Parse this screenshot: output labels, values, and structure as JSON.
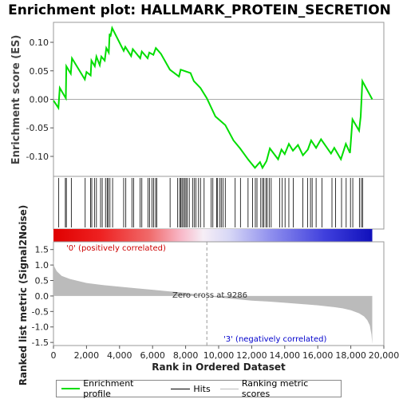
{
  "title": "Enrichment plot: HALLMARK_PROTEIN_SECRETION",
  "es_ylabel": "Enrichment score (ES)",
  "rank_ylabel": "Ranked list metric (Signal2Noise)",
  "xlabel": "Rank in Ordered Dataset",
  "pos_label": "'0' (positively correlated)",
  "neg_label": "'3' (negatively correlated)",
  "zero_cross_label": "Zero cross at 9286",
  "legend": {
    "enrichment": "Enrichment profile",
    "hits": "Hits",
    "ranking": "Ranking metric scores"
  },
  "colors": {
    "enrichment_line": "#00dd00",
    "hits": "#000000",
    "pos_text": "#cc0000",
    "neg_text": "#0000cc",
    "metric_fill": "#bbbbbb"
  },
  "chart_data": [
    {
      "type": "line",
      "name": "enrichment-profile",
      "ylabel": "Enrichment score (ES)",
      "xlim": [
        0,
        20000
      ],
      "ylim": [
        -0.135,
        0.135
      ],
      "yticks": [
        -0.1,
        -0.05,
        0.0,
        0.05,
        0.1
      ],
      "ytick_labels": [
        "-0.10",
        "-0.05",
        "0.00",
        "0.05",
        "0.10"
      ],
      "points": [
        [
          0,
          -0.002
        ],
        [
          300,
          -0.015
        ],
        [
          380,
          0.02
        ],
        [
          750,
          0.002
        ],
        [
          780,
          0.058
        ],
        [
          1050,
          0.045
        ],
        [
          1120,
          0.072
        ],
        [
          1900,
          0.035
        ],
        [
          2000,
          0.048
        ],
        [
          2250,
          0.042
        ],
        [
          2300,
          0.068
        ],
        [
          2500,
          0.058
        ],
        [
          2600,
          0.075
        ],
        [
          2800,
          0.06
        ],
        [
          2900,
          0.075
        ],
        [
          3100,
          0.068
        ],
        [
          3200,
          0.09
        ],
        [
          3350,
          0.082
        ],
        [
          3400,
          0.115
        ],
        [
          3450,
          0.11
        ],
        [
          3550,
          0.125
        ],
        [
          4250,
          0.085
        ],
        [
          4350,
          0.092
        ],
        [
          4700,
          0.076
        ],
        [
          4800,
          0.088
        ],
        [
          5250,
          0.072
        ],
        [
          5350,
          0.084
        ],
        [
          5700,
          0.072
        ],
        [
          5800,
          0.082
        ],
        [
          6050,
          0.078
        ],
        [
          6200,
          0.09
        ],
        [
          6500,
          0.08
        ],
        [
          7050,
          0.052
        ],
        [
          7600,
          0.04
        ],
        [
          7700,
          0.052
        ],
        [
          8300,
          0.046
        ],
        [
          8500,
          0.032
        ],
        [
          8900,
          0.02
        ],
        [
          9286,
          0.002
        ],
        [
          9800,
          -0.03
        ],
        [
          10400,
          -0.045
        ],
        [
          10900,
          -0.072
        ],
        [
          11300,
          -0.086
        ],
        [
          11800,
          -0.106
        ],
        [
          12200,
          -0.12
        ],
        [
          12500,
          -0.11
        ],
        [
          12650,
          -0.12
        ],
        [
          12900,
          -0.108
        ],
        [
          13100,
          -0.086
        ],
        [
          13600,
          -0.105
        ],
        [
          13800,
          -0.088
        ],
        [
          14000,
          -0.096
        ],
        [
          14250,
          -0.078
        ],
        [
          14500,
          -0.09
        ],
        [
          14800,
          -0.08
        ],
        [
          15100,
          -0.098
        ],
        [
          15400,
          -0.088
        ],
        [
          15600,
          -0.072
        ],
        [
          15900,
          -0.085
        ],
        [
          16200,
          -0.07
        ],
        [
          16800,
          -0.095
        ],
        [
          17000,
          -0.085
        ],
        [
          17400,
          -0.105
        ],
        [
          17700,
          -0.078
        ],
        [
          17950,
          -0.094
        ],
        [
          18100,
          -0.035
        ],
        [
          18500,
          -0.055
        ],
        [
          18600,
          -0.03
        ],
        [
          18700,
          0.032
        ],
        [
          19300,
          0.0
        ]
      ]
    },
    {
      "type": "area",
      "name": "ranking-metric",
      "ylabel": "Ranked list metric (Signal2Noise)",
      "xlim": [
        0,
        20000
      ],
      "ylim": [
        -1.6,
        1.75
      ],
      "yticks": [
        -1.5,
        -1.0,
        -0.5,
        0.0,
        0.5,
        1.0,
        1.5
      ],
      "ytick_labels": [
        "-1.5",
        "-1.0",
        "-0.5",
        "0.0",
        "0.5",
        "1.0",
        "1.5"
      ],
      "xticks": [
        0,
        2000,
        4000,
        6000,
        8000,
        10000,
        12000,
        14000,
        16000,
        18000,
        20000
      ],
      "xtick_labels": [
        "0",
        "2,000",
        "4,000",
        "6,000",
        "8,000",
        "10,000",
        "12,000",
        "14,000",
        "16,000",
        "18,000",
        "20,000"
      ],
      "zero_cross": 9286,
      "n_genes": 19300,
      "points": [
        [
          0,
          1.15
        ],
        [
          50,
          0.95
        ],
        [
          200,
          0.8
        ],
        [
          500,
          0.65
        ],
        [
          1000,
          0.55
        ],
        [
          2000,
          0.42
        ],
        [
          3000,
          0.35
        ],
        [
          4000,
          0.3
        ],
        [
          5000,
          0.25
        ],
        [
          6000,
          0.2
        ],
        [
          7000,
          0.15
        ],
        [
          8000,
          0.1
        ],
        [
          9286,
          0.0
        ],
        [
          10000,
          -0.05
        ],
        [
          11000,
          -0.1
        ],
        [
          12000,
          -0.15
        ],
        [
          13000,
          -0.18
        ],
        [
          14000,
          -0.22
        ],
        [
          15000,
          -0.26
        ],
        [
          16000,
          -0.3
        ],
        [
          17000,
          -0.36
        ],
        [
          17500,
          -0.4
        ],
        [
          18000,
          -0.46
        ],
        [
          18500,
          -0.56
        ],
        [
          18800,
          -0.66
        ],
        [
          19000,
          -0.78
        ],
        [
          19150,
          -0.95
        ],
        [
          19250,
          -1.25
        ],
        [
          19300,
          -1.55
        ]
      ]
    },
    {
      "type": "scatter",
      "name": "hits",
      "x": [
        320,
        720,
        780,
        1080,
        1920,
        2250,
        2320,
        2480,
        2600,
        2850,
        2950,
        3150,
        3250,
        3320,
        3420,
        3580,
        4250,
        4380,
        4750,
        4850,
        5250,
        5350,
        5720,
        5820,
        5960,
        6060,
        6180,
        6260,
        7060,
        7520,
        7640,
        7700,
        7780,
        7860,
        7940,
        8020,
        8100,
        8220,
        8420,
        8520,
        8620,
        8780,
        8900,
        9120,
        9550,
        9650,
        9880,
        9940,
        10080,
        10160,
        10260,
        10400,
        11000,
        11320,
        11780,
        12050,
        12220,
        12320,
        12550,
        12660,
        12740,
        12860,
        12940,
        13060,
        13180,
        13700,
        13850,
        14020,
        14250,
        14520,
        15100,
        15380,
        15560,
        15660,
        15900,
        16250,
        16860,
        17080,
        17440,
        17720,
        17980,
        18120,
        18520,
        18640,
        18720
      ]
    }
  ]
}
